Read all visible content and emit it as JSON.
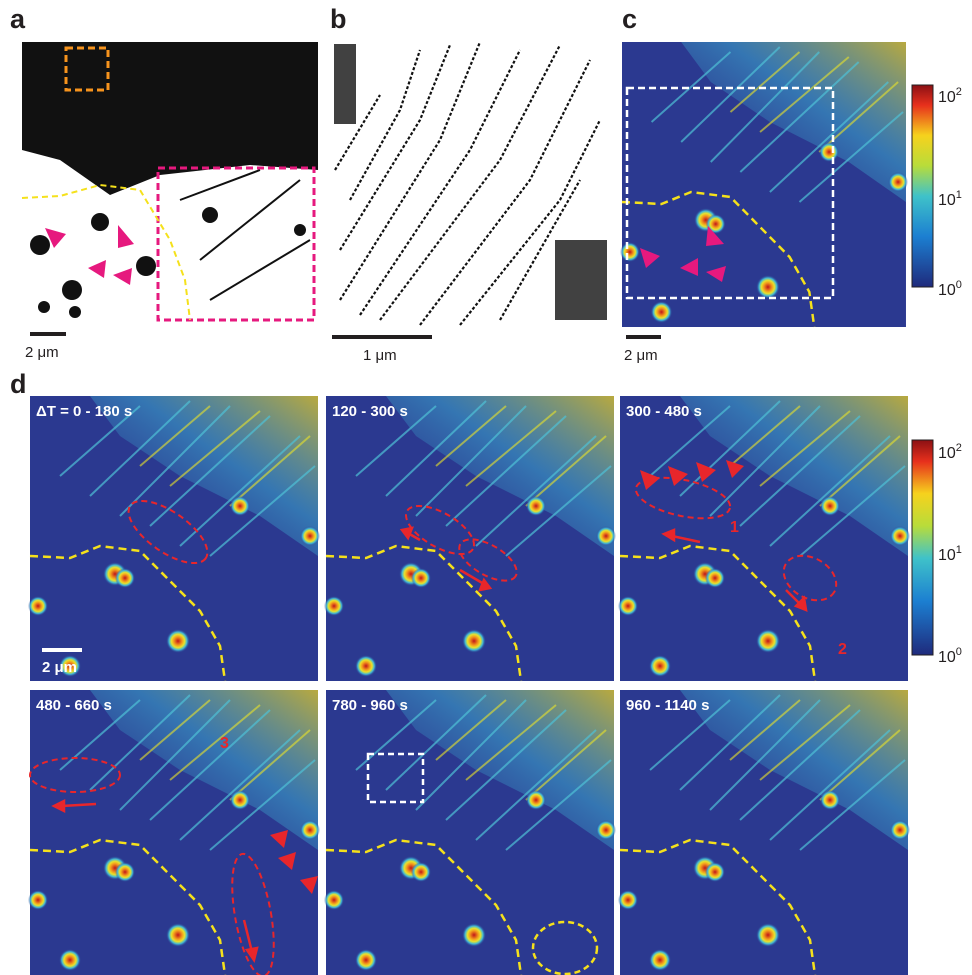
{
  "panels": {
    "a": {
      "label": "a",
      "scale_bar": "2 μm"
    },
    "b": {
      "label": "b",
      "scale_bar": "1 μm"
    },
    "c": {
      "label": "c",
      "scale_bar": "2 μm",
      "colorbar": [
        {
          "base": "10",
          "exp": "2"
        },
        {
          "base": "10",
          "exp": "1"
        },
        {
          "base": "10",
          "exp": "0"
        }
      ]
    },
    "d": {
      "label": "d",
      "scale_bar": "2 μm",
      "colorbar": [
        {
          "base": "10",
          "exp": "2"
        },
        {
          "base": "10",
          "exp": "1"
        },
        {
          "base": "10",
          "exp": "0"
        }
      ],
      "frames": [
        "ΔT = 0 - 180 s",
        "120 - 300 s",
        "300 - 480 s",
        "480 - 660 s",
        "780 - 960 s",
        "960 - 1140 s"
      ],
      "annotations": [
        "1",
        "2",
        "3"
      ]
    }
  }
}
